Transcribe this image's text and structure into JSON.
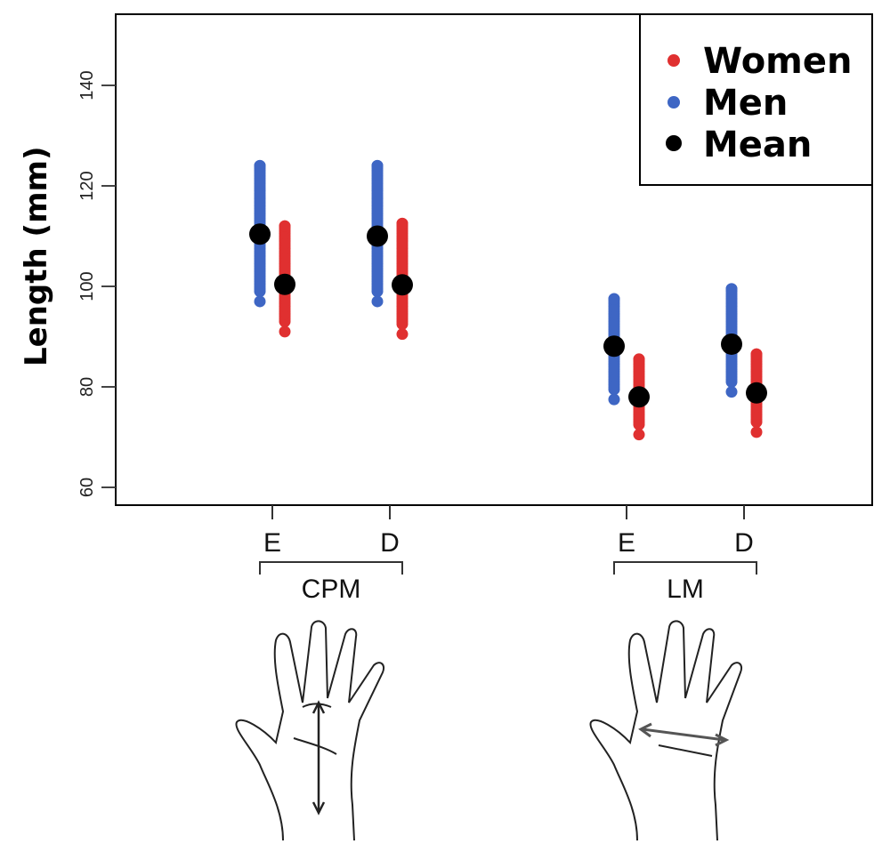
{
  "chart_data": {
    "type": "scatter",
    "title": "",
    "ylabel": "Length (mm)",
    "xlabel": "",
    "ylim": [
      56,
      154
    ],
    "yticks": [
      60,
      80,
      100,
      120,
      140
    ],
    "grid": false,
    "legend": {
      "placement": "top-right",
      "entries": [
        {
          "label": "Women",
          "color": "#e03030"
        },
        {
          "label": "Men",
          "color": "#3e66c4"
        },
        {
          "label": "Mean",
          "color": "#000000"
        }
      ]
    },
    "groups": [
      {
        "name": "CPM",
        "categories": [
          "E",
          "D"
        ]
      },
      {
        "name": "LM",
        "categories": [
          "E",
          "D"
        ]
      }
    ],
    "series": [
      {
        "group": "CPM",
        "category": "E",
        "sex": "Men",
        "min": 97,
        "max": 124,
        "mean": 110.4
      },
      {
        "group": "CPM",
        "category": "E",
        "sex": "Women",
        "min": 91,
        "max": 112,
        "mean": 100.4
      },
      {
        "group": "CPM",
        "category": "D",
        "sex": "Men",
        "min": 97,
        "max": 124,
        "mean": 110
      },
      {
        "group": "CPM",
        "category": "D",
        "sex": "Women",
        "min": 90.5,
        "max": 112.5,
        "mean": 100.3
      },
      {
        "group": "LM",
        "category": "E",
        "sex": "Men",
        "min": 77.5,
        "max": 97.5,
        "mean": 88.1
      },
      {
        "group": "LM",
        "category": "E",
        "sex": "Women",
        "min": 70.5,
        "max": 85.5,
        "mean": 78
      },
      {
        "group": "LM",
        "category": "D",
        "sex": "Men",
        "min": 79,
        "max": 99.5,
        "mean": 88.5
      },
      {
        "group": "LM",
        "category": "D",
        "sex": "Women",
        "min": 71,
        "max": 86.5,
        "mean": 78.8
      }
    ]
  }
}
